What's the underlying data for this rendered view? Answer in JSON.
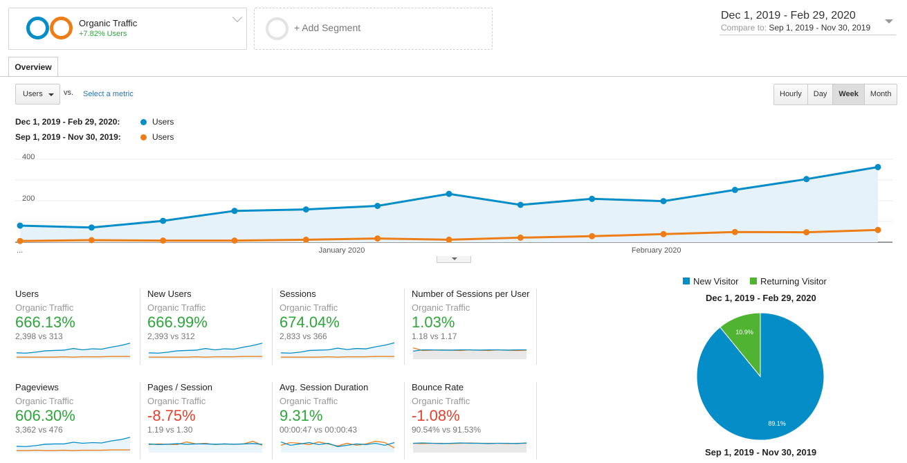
{
  "segment": {
    "name": "Organic Traffic",
    "change": "+7.82% Users",
    "ring_colors": [
      "#058dc7",
      "#ed7e17"
    ]
  },
  "add_segment": {
    "label": "+ Add Segment"
  },
  "date_range": {
    "main": "Dec 1, 2019 - Feb 29, 2020",
    "compare_label": "Compare to:",
    "compare": "Sep 1, 2019 - Nov 30, 2019"
  },
  "tabs": [
    {
      "label": "Overview"
    }
  ],
  "controls": {
    "metric_select": "Users",
    "vs": "vs.",
    "select_metric": "Select a metric",
    "granularity": [
      "Hourly",
      "Day",
      "Week",
      "Month"
    ],
    "granularity_active": "Week"
  },
  "legend": [
    {
      "range": "Dec 1, 2019 - Feb 29, 2020:",
      "metric": "Users",
      "color": "#058dc7"
    },
    {
      "range": "Sep 1, 2019 - Nov 30, 2019:",
      "metric": "Users",
      "color": "#ed7e17"
    }
  ],
  "chart_data": {
    "type": "line",
    "y_ticks": [
      "400",
      "200"
    ],
    "ylim": [
      0,
      420
    ],
    "x_labels": [
      {
        "label": "...",
        "index": 0
      },
      {
        "label": "January 2020",
        "index": 4.5
      },
      {
        "label": "February 2020",
        "index": 8.9
      }
    ],
    "series": [
      {
        "color": "#058dc7",
        "values": [
          80,
          71,
          103,
          151,
          158,
          175,
          233,
          180,
          209,
          198,
          252,
          304,
          362
        ]
      },
      {
        "color": "#ed7e17",
        "values": [
          6,
          10,
          8,
          8,
          12,
          18,
          12,
          22,
          29,
          39,
          49,
          48,
          59
        ]
      }
    ]
  },
  "metrics": [
    {
      "name": "Users",
      "segment": "Organic Traffic",
      "value": "666.13%",
      "positive": true,
      "compare": "2,398 vs 313",
      "spark": {
        "a": [
          15,
          14,
          17,
          21,
          22,
          23,
          28,
          24,
          27,
          26,
          32,
          37,
          44
        ],
        "b": [
          2,
          2,
          2,
          2,
          2,
          3,
          2,
          3,
          3,
          3,
          4,
          4,
          4
        ]
      }
    },
    {
      "name": "New Users",
      "segment": "Organic Traffic",
      "value": "666.99%",
      "positive": true,
      "compare": "2,393 vs 312",
      "spark": {
        "a": [
          15,
          14,
          17,
          21,
          22,
          23,
          28,
          24,
          27,
          26,
          32,
          37,
          44
        ],
        "b": [
          2,
          2,
          2,
          2,
          2,
          3,
          2,
          3,
          3,
          3,
          4,
          4,
          4
        ]
      }
    },
    {
      "name": "Sessions",
      "segment": "Organic Traffic",
      "value": "674.04%",
      "positive": true,
      "compare": "2,833 vs 366",
      "spark": {
        "a": [
          15,
          14,
          17,
          22,
          23,
          24,
          29,
          25,
          28,
          27,
          33,
          38,
          45
        ],
        "b": [
          2,
          2,
          2,
          2,
          2,
          3,
          2,
          3,
          3,
          3,
          4,
          4,
          4
        ]
      }
    },
    {
      "name": "Number of Sessions per User",
      "segment": "Organic Traffic",
      "value": "1.03%",
      "positive": true,
      "compare": "1.18 vs 1.17",
      "spark": {
        "a": [
          20,
          24,
          24,
          23,
          23,
          24,
          24,
          23,
          24,
          24,
          23,
          24,
          24
        ],
        "b": [
          30,
          22,
          23,
          24,
          23,
          22,
          24,
          23,
          22,
          24,
          23,
          22,
          23
        ]
      }
    },
    {
      "name": "Pageviews",
      "segment": "Organic Traffic",
      "value": "606.30%",
      "positive": true,
      "compare": "3,362 vs 476",
      "spark": {
        "a": [
          15,
          14,
          17,
          21,
          22,
          22,
          27,
          24,
          26,
          25,
          31,
          35,
          42
        ],
        "b": [
          2,
          2,
          3,
          2,
          2,
          3,
          2,
          3,
          3,
          3,
          4,
          4,
          4
        ]
      }
    },
    {
      "name": "Pages / Session",
      "segment": "Organic Traffic",
      "value": "-8.75%",
      "positive": false,
      "compare": "1.19 vs 1.30",
      "spark": {
        "a": [
          22,
          20,
          21,
          23,
          21,
          22,
          22,
          21,
          22,
          21,
          22,
          23,
          21
        ],
        "b": [
          20,
          22,
          21,
          20,
          28,
          22,
          24,
          20,
          22,
          21,
          22,
          30,
          18
        ]
      }
    },
    {
      "name": "Avg. Session Duration",
      "segment": "Organic Traffic",
      "value": "9.31%",
      "positive": true,
      "compare": "00:00:47 vs 00:00:43",
      "spark": {
        "a": [
          28,
          18,
          22,
          26,
          20,
          24,
          14,
          18,
          22,
          20,
          24,
          18,
          26
        ],
        "b": [
          18,
          26,
          24,
          20,
          28,
          22,
          16,
          24,
          18,
          22,
          30,
          26,
          10
        ]
      }
    },
    {
      "name": "Bounce Rate",
      "segment": "Organic Traffic",
      "value": "-1.08%",
      "positive": false,
      "compare": "90.54% vs 91.53%",
      "spark": {
        "a": [
          24,
          25,
          24,
          23,
          24,
          25,
          24,
          24,
          23,
          24,
          24,
          23,
          25
        ],
        "b": [
          24,
          23,
          24,
          24,
          23,
          24,
          25,
          24,
          24,
          24,
          23,
          24,
          24
        ]
      }
    }
  ],
  "pie": {
    "legend": [
      {
        "label": "New Visitor",
        "color": "#058dc7"
      },
      {
        "label": "Returning Visitor",
        "color": "#50b432"
      }
    ],
    "title_top": "Dec 1, 2019 - Feb 29, 2020",
    "title_bottom": "Sep 1, 2019 - Nov 30, 2019",
    "slices": [
      {
        "label": "New Visitor",
        "value": 89.1,
        "text": "89.1%"
      },
      {
        "label": "Returning Visitor",
        "value": 10.9,
        "text": "10.9%"
      }
    ]
  }
}
